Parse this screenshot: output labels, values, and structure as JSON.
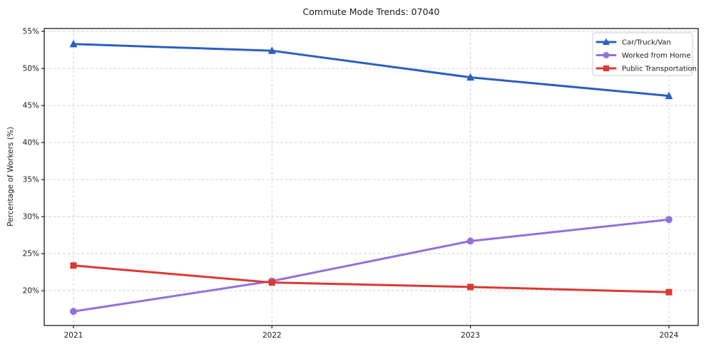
{
  "title": "Commute Mode Trends: 07040",
  "axes": {
    "ylabel": "Percentage of Workers (%)",
    "yticks": [
      20,
      25,
      30,
      35,
      40,
      45,
      50,
      55
    ],
    "ytick_suffix": "%",
    "xtick_labels": [
      "2021",
      "2022",
      "2023",
      "2024"
    ]
  },
  "chart_data": {
    "type": "line",
    "title": "Commute Mode Trends: 07040",
    "xlabel": "",
    "ylabel": "Percentage of Workers (%)",
    "x": [
      2021,
      2022,
      2023,
      2024
    ],
    "series": [
      {
        "name": "Car/Truck/Van",
        "values": [
          53.3,
          52.4,
          48.8,
          46.3
        ],
        "color": "#2b5fc0",
        "marker": "triangle"
      },
      {
        "name": "Worked from Home",
        "values": [
          17.2,
          21.3,
          26.7,
          29.6
        ],
        "color": "#9370db",
        "marker": "circle"
      },
      {
        "name": "Public Transportation",
        "values": [
          23.4,
          21.1,
          20.5,
          19.8
        ],
        "color": "#d93a33",
        "marker": "square"
      }
    ],
    "ylim": [
      15.3,
      55.4
    ],
    "grid": true,
    "grid_style": "dashed",
    "legend_position": "upper right"
  },
  "colors": {
    "grid": "#cccccc",
    "spine": "#1a1a1a",
    "text": "#1a1a1a",
    "background": "#ffffff",
    "legend_border": "#cccccc"
  }
}
